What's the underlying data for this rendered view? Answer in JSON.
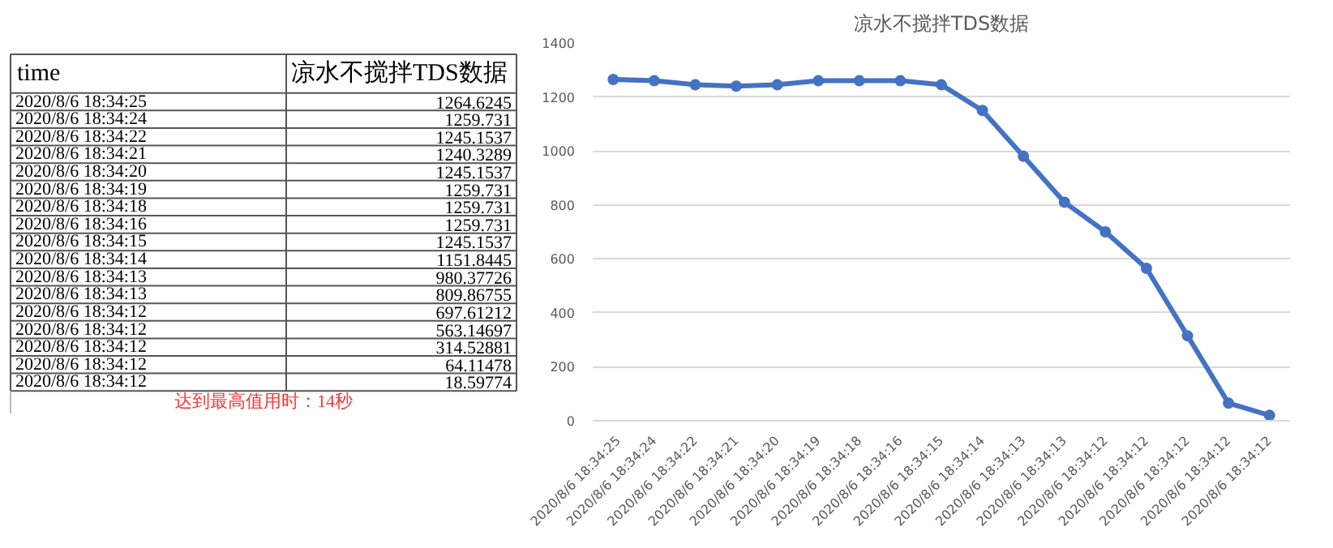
{
  "chart_data": [
    {
      "type": "other",
      "annotations": [
        "time",
        "凉水不搅拌TDS数据",
        "达到最高值用时：14秒"
      ],
      "categories": [
        "2020/8/6 18:34:25",
        "2020/8/6 18:34:24",
        "2020/8/6 18:34:22",
        "2020/8/6 18:34:21",
        "2020/8/6 18:34:20",
        "2020/8/6 18:34:19",
        "2020/8/6 18:34:18",
        "2020/8/6 18:34:16",
        "2020/8/6 18:34:15",
        "2020/8/6 18:34:14",
        "2020/8/6 18:34:13",
        "2020/8/6 18:34:13",
        "2020/8/6 18:34:12",
        "2020/8/6 18:34:12",
        "2020/8/6 18:34:12",
        "2020/8/6 18:34:12",
        "2020/8/6 18:34:12"
      ],
      "values": [
        1264.6245,
        1259.731,
        1245.1537,
        1240.3289,
        1245.1537,
        1259.731,
        1259.731,
        1259.731,
        1245.1537,
        1151.8445,
        980.37726,
        809.86755,
        697.61212,
        563.14697,
        314.52881,
        64.11478,
        18.59774
      ],
      "data_labels": true
    },
    {
      "type": "line",
      "title": "凉水不搅拌TDS数据",
      "categories": [
        "2020/8/6 18:34:25",
        "2020/8/6 18:34:24",
        "2020/8/6 18:34:22",
        "2020/8/6 18:34:21",
        "2020/8/6 18:34:20",
        "2020/8/6 18:34:19",
        "2020/8/6 18:34:18",
        "2020/8/6 18:34:16",
        "2020/8/6 18:34:15",
        "2020/8/6 18:34:14",
        "2020/8/6 18:34:13",
        "2020/8/6 18:34:13",
        "2020/8/6 18:34:12",
        "2020/8/6 18:34:12",
        "2020/8/6 18:34:12",
        "2020/8/6 18:34:12",
        "2020/8/6 18:34:12"
      ],
      "values": [
        1265,
        1260,
        1245,
        1240,
        1245,
        1260,
        1260,
        1260,
        1245,
        1150,
        980,
        810,
        700,
        565,
        315,
        65,
        20
      ],
      "color": "#4472c4",
      "marker": "circle",
      "line_style": "solid",
      "grid": "y",
      "ylim": [
        0,
        1400
      ],
      "yticks": [
        0,
        200,
        400,
        600,
        800,
        1000,
        1200,
        1400
      ]
    }
  ]
}
